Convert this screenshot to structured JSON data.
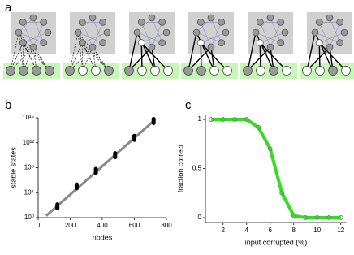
{
  "diagram": {
    "panel": "a"
  },
  "chart_data": [
    {
      "type": "scatter",
      "panel": "b",
      "x_label": "nodes",
      "y_label": "stable states",
      "x": [
        120,
        240,
        360,
        480,
        600,
        720
      ],
      "values": [
        63,
        100000,
        30000000,
        10000000000,
        6000000000000,
        3000000000000000
      ],
      "color": "#000000",
      "fit": {
        "x": [
          50,
          720
        ],
        "values": [
          2,
          3000000000000000
        ],
        "color": "#888888"
      },
      "log_y": true,
      "xlim": [
        0,
        800
      ],
      "xticks": [
        0,
        200,
        400,
        600,
        800
      ],
      "ylim": [
        1,
        10000000000000000
      ],
      "yticks": [
        {
          "value": 1,
          "label": "10⁰"
        },
        {
          "value": 10000,
          "label": "10⁴"
        },
        {
          "value": 100000000,
          "label": "10⁸"
        },
        {
          "value": 1000000000000,
          "label": "10¹²"
        },
        {
          "value": 10000000000000000,
          "label": "10¹⁶"
        }
      ]
    },
    {
      "type": "line",
      "panel": "c",
      "x_label": "input corrupted (%)",
      "y_label": "fraction correct",
      "x": [
        1,
        2,
        3,
        4,
        5,
        6,
        7,
        8,
        9,
        10,
        11,
        12
      ],
      "values": [
        1,
        1,
        1,
        1,
        0.92,
        0.7,
        0.25,
        0.02,
        0,
        0,
        0,
        0
      ],
      "color": "#33dd22",
      "marker_color": "#777777",
      "xlim": [
        0.5,
        12.5
      ],
      "xticks": [
        2,
        4,
        6,
        8,
        10,
        12
      ],
      "ylim": [
        -0.05,
        1.05
      ],
      "yticks": [
        0,
        0.5,
        1
      ]
    }
  ]
}
